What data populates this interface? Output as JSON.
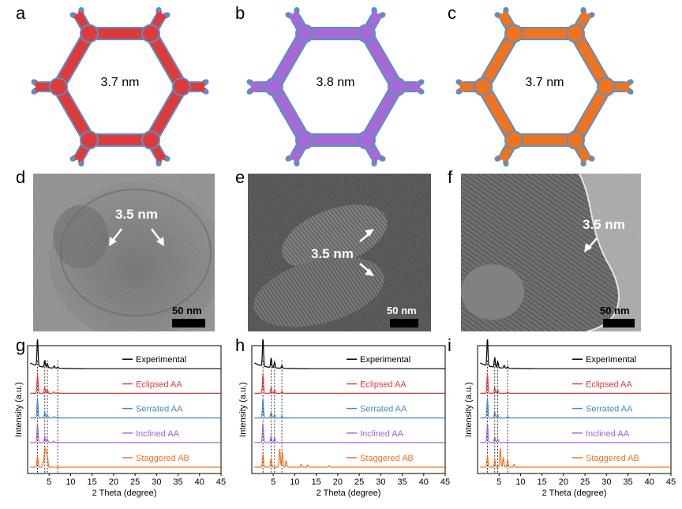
{
  "panels": {
    "a": {
      "letter": "a",
      "pore_size": "3.7 nm",
      "color": "#dd3b3b",
      "edge": "#5b8fc7"
    },
    "b": {
      "letter": "b",
      "pore_size": "3.8 nm",
      "color": "#a56ad6",
      "edge": "#5b8fc7"
    },
    "c": {
      "letter": "c",
      "pore_size": "3.7 nm",
      "color": "#ee7420",
      "edge": "#5b8fc7"
    },
    "d": {
      "letter": "d",
      "label": "3.5 nm",
      "scale": "50 nm"
    },
    "e": {
      "letter": "e",
      "label": "3.5 nm",
      "scale": "50 nm"
    },
    "f": {
      "letter": "f",
      "label": "3.5 nm",
      "scale": "50 nm"
    },
    "g": {
      "letter": "g"
    },
    "h": {
      "letter": "h"
    },
    "i": {
      "letter": "i"
    }
  },
  "chart_data": [
    {
      "panel": "g",
      "type": "line",
      "xlabel": "2 Theta (degree)",
      "ylabel": "Intensity (a.u.)",
      "xlim": [
        0,
        45
      ],
      "xticks": [
        5,
        10,
        15,
        20,
        25,
        30,
        35,
        40,
        45
      ],
      "series": [
        {
          "name": "Experimental",
          "color": "#000000",
          "peaks": [
            [
              2.3,
              1.0
            ],
            [
              4.0,
              0.25
            ],
            [
              4.6,
              0.15
            ],
            [
              6.2,
              0.08
            ],
            [
              7.0,
              0.05
            ]
          ]
        },
        {
          "name": "Eclipsed AA",
          "color": "#e03a3a",
          "peaks": [
            [
              2.3,
              1.0
            ],
            [
              4.0,
              0.3
            ],
            [
              4.6,
              0.2
            ],
            [
              6.1,
              0.08
            ],
            [
              7.0,
              0.05
            ]
          ]
        },
        {
          "name": "Serrated AA",
          "color": "#4a86c5",
          "peaks": [
            [
              2.3,
              1.0
            ],
            [
              4.0,
              0.3
            ],
            [
              4.6,
              0.2
            ],
            [
              6.1,
              0.08
            ],
            [
              7.0,
              0.05
            ]
          ]
        },
        {
          "name": "Inclined AA",
          "color": "#a564d6",
          "peaks": [
            [
              2.3,
              1.0
            ],
            [
              4.0,
              0.35
            ],
            [
              4.6,
              0.2
            ],
            [
              6.1,
              0.08
            ]
          ]
        },
        {
          "name": "Staggered AB",
          "color": "#ee7420",
          "peaks": [
            [
              2.3,
              0.6
            ],
            [
              3.6,
              0.3
            ],
            [
              4.0,
              1.0
            ],
            [
              4.3,
              0.8
            ],
            [
              4.6,
              0.6
            ]
          ]
        }
      ],
      "vlines": [
        2.3,
        4.0,
        4.6,
        7.0
      ]
    },
    {
      "panel": "h",
      "type": "line",
      "xlabel": "2 Theta (degree)",
      "ylabel": "Intensity (a.u.)",
      "xlim": [
        0,
        45
      ],
      "xticks": [
        5,
        10,
        15,
        20,
        25,
        30,
        35,
        40,
        45
      ],
      "series": [
        {
          "name": "Experimental",
          "color": "#000000",
          "peaks": [
            [
              2.6,
              1.0
            ],
            [
              4.5,
              0.35
            ],
            [
              5.3,
              0.2
            ],
            [
              7.0,
              0.1
            ]
          ]
        },
        {
          "name": "Eclipsed AA",
          "color": "#e03a3a",
          "peaks": [
            [
              2.6,
              1.0
            ],
            [
              4.5,
              0.3
            ],
            [
              5.3,
              0.2
            ],
            [
              7.0,
              0.1
            ]
          ]
        },
        {
          "name": "Serrated AA",
          "color": "#4a86c5",
          "peaks": [
            [
              2.6,
              1.0
            ],
            [
              4.5,
              0.3
            ],
            [
              5.3,
              0.2
            ],
            [
              7.0,
              0.1
            ]
          ]
        },
        {
          "name": "Inclined AA",
          "color": "#a564d6",
          "peaks": [
            [
              2.6,
              1.0
            ],
            [
              4.5,
              0.35
            ],
            [
              5.3,
              0.25
            ]
          ]
        },
        {
          "name": "Staggered AB",
          "color": "#ee7420",
          "peaks": [
            [
              2.6,
              0.7
            ],
            [
              4.5,
              0.5
            ],
            [
              6.5,
              1.0
            ],
            [
              7.1,
              0.8
            ],
            [
              8.0,
              0.35
            ],
            [
              11.5,
              0.15
            ],
            [
              13.0,
              0.12
            ],
            [
              18.0,
              0.08
            ]
          ]
        }
      ],
      "vlines": [
        2.6,
        4.5,
        5.3,
        7.0
      ]
    },
    {
      "panel": "i",
      "type": "line",
      "xlabel": "2 Theta (degree)",
      "ylabel": "Intensity (a.u.)",
      "xlim": [
        0,
        45
      ],
      "xticks": [
        5,
        10,
        15,
        20,
        25,
        30,
        35,
        40,
        45
      ],
      "series": [
        {
          "name": "Experimental",
          "color": "#000000",
          "peaks": [
            [
              2.3,
              1.0
            ],
            [
              4.0,
              0.35
            ],
            [
              4.7,
              0.22
            ],
            [
              6.2,
              0.1
            ],
            [
              7.0,
              0.06
            ]
          ]
        },
        {
          "name": "Eclipsed AA",
          "color": "#e03a3a",
          "peaks": [
            [
              2.3,
              1.0
            ],
            [
              4.0,
              0.3
            ],
            [
              4.7,
              0.2
            ],
            [
              7.0,
              0.08
            ]
          ]
        },
        {
          "name": "Serrated AA",
          "color": "#4a86c5",
          "peaks": [
            [
              2.3,
              1.0
            ],
            [
              4.0,
              0.3
            ],
            [
              4.7,
              0.2
            ],
            [
              7.0,
              0.08
            ]
          ]
        },
        {
          "name": "Inclined AA",
          "color": "#a564d6",
          "peaks": [
            [
              2.3,
              1.0
            ],
            [
              4.0,
              0.3
            ],
            [
              4.7,
              0.2
            ]
          ]
        },
        {
          "name": "Staggered AB",
          "color": "#ee7420",
          "peaks": [
            [
              2.3,
              0.6
            ],
            [
              4.0,
              0.4
            ],
            [
              5.3,
              1.0
            ],
            [
              6.0,
              0.5
            ],
            [
              7.0,
              0.4
            ],
            [
              8.5,
              0.15
            ]
          ]
        }
      ],
      "vlines": [
        2.3,
        4.0,
        4.7,
        7.0
      ]
    }
  ]
}
